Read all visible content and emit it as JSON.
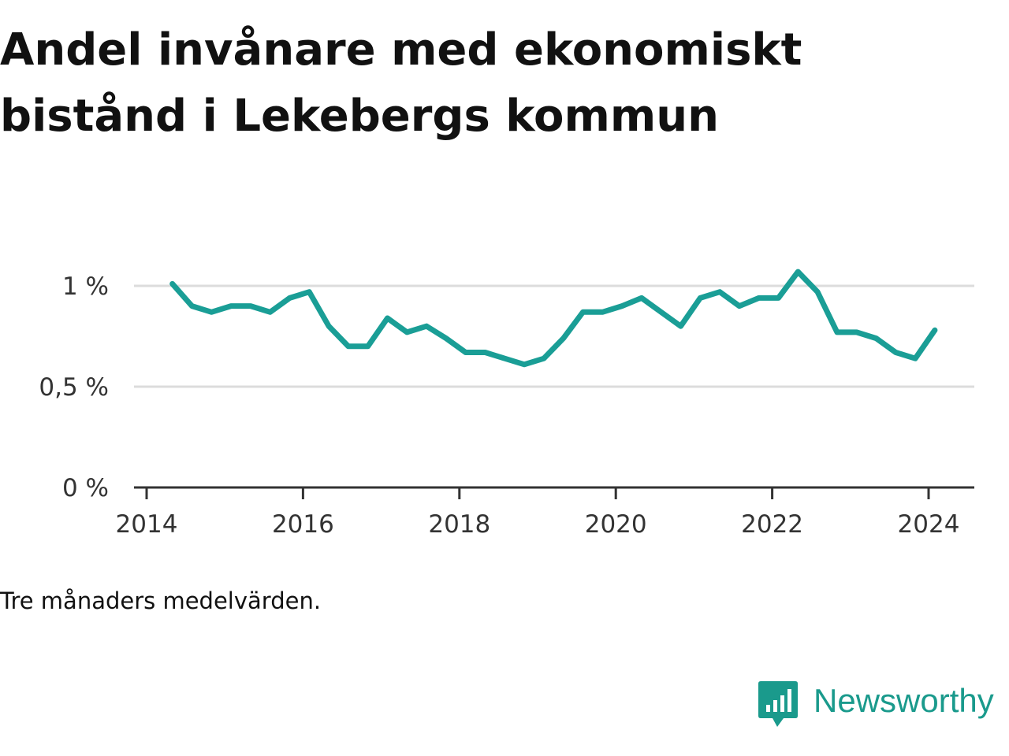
{
  "title_line1": "Andel invånare med ekonomiskt",
  "title_line2": "bistånd i Lekebergs kommun",
  "note": "Tre månaders medelvärden.",
  "brand": {
    "name": "Newsworthy",
    "color": "#1a9a8c",
    "icon": "newsworthy-logo-icon"
  },
  "chart_data": {
    "type": "line",
    "title": "Andel invånare med ekonomiskt bistånd i Lekebergs kommun",
    "xlabel": "",
    "ylabel": "",
    "xlim": [
      2014,
      2024.5
    ],
    "ylim": [
      0,
      1
    ],
    "x_ticks": [
      2014,
      2016,
      2018,
      2020,
      2022,
      2024
    ],
    "x_tick_labels": [
      "2014",
      "2016",
      "2018",
      "2020",
      "2022",
      "2024"
    ],
    "y_ticks": [
      0,
      0.5,
      1
    ],
    "y_tick_labels": [
      "0 %",
      "0,5 %",
      "1 %"
    ],
    "grid": true,
    "line_color": "#1a9e96",
    "series": [
      {
        "x": [
          2014.33,
          2014.58,
          2014.83,
          2015.08,
          2015.33,
          2015.58,
          2015.83,
          2016.08,
          2016.33,
          2016.58,
          2016.83,
          2017.08,
          2017.33,
          2017.58,
          2017.83,
          2018.08,
          2018.33,
          2018.58,
          2018.83,
          2019.08,
          2019.33,
          2019.58,
          2019.83,
          2020.08,
          2020.33,
          2020.58,
          2020.83,
          2021.08,
          2021.33,
          2021.58,
          2021.83,
          2022.08,
          2022.33,
          2022.58,
          2022.83,
          2023.08,
          2023.33,
          2023.58,
          2023.83,
          2024.08
        ],
        "values": [
          1.01,
          0.9,
          0.87,
          0.9,
          0.9,
          0.87,
          0.94,
          0.97,
          0.8,
          0.7,
          0.7,
          0.84,
          0.77,
          0.8,
          0.74,
          0.67,
          0.67,
          0.64,
          0.61,
          0.64,
          0.74,
          0.87,
          0.87,
          0.9,
          0.94,
          0.87,
          0.8,
          0.94,
          0.97,
          0.9,
          0.94,
          0.94,
          1.07,
          0.97,
          0.77,
          0.77,
          0.74,
          0.67,
          0.64,
          0.78
        ]
      }
    ]
  }
}
